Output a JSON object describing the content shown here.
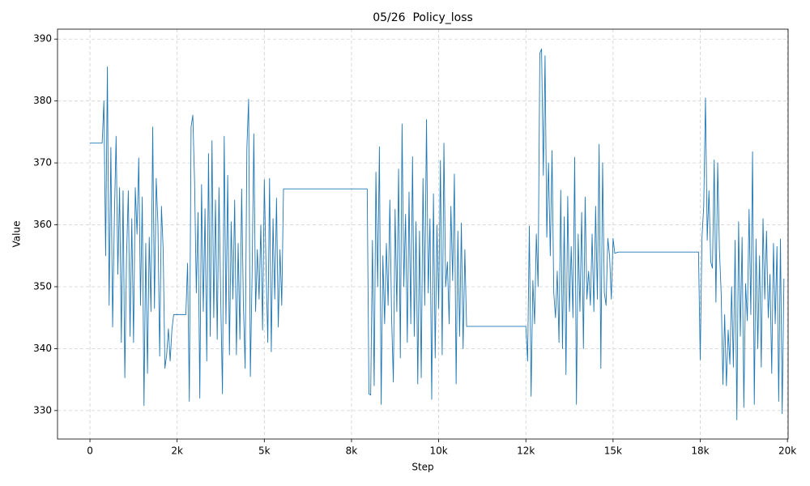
{
  "chart_data": {
    "type": "line",
    "title": "05/26  Policy_loss",
    "x_label": "Step",
    "y_label": "Value",
    "color": "#1f77b4",
    "grid": true,
    "xlim": [
      -930,
      20020
    ],
    "ylim": [
      325.4,
      391.6
    ],
    "xticks": [
      0,
      {
        "value": 2500,
        "label": "2k"
      },
      {
        "value": 5000,
        "label": "5k"
      },
      {
        "value": 7500,
        "label": "8k"
      },
      {
        "value": 10000,
        "label": "10k"
      },
      {
        "value": 12500,
        "label": "12k"
      },
      {
        "value": 15000,
        "label": "15k"
      },
      {
        "value": 17500,
        "label": "18k"
      },
      {
        "value": 20000,
        "label": "20k"
      }
    ],
    "yticks": [
      330,
      340,
      350,
      360,
      370,
      380,
      390
    ],
    "x": [
      0,
      350,
      400,
      450,
      500,
      550,
      600,
      650,
      700,
      750,
      800,
      850,
      900,
      950,
      1000,
      1050,
      1100,
      1150,
      1200,
      1250,
      1300,
      1350,
      1400,
      1450,
      1500,
      1550,
      1600,
      1650,
      1700,
      1750,
      1800,
      1850,
      1900,
      1950,
      2000,
      2050,
      2100,
      2150,
      2200,
      2250,
      2300,
      2350,
      2400,
      2750,
      2800,
      2850,
      2900,
      2950,
      3000,
      3050,
      3100,
      3150,
      3200,
      3250,
      3300,
      3350,
      3400,
      3450,
      3500,
      3550,
      3600,
      3650,
      3700,
      3750,
      3800,
      3850,
      3900,
      3950,
      4000,
      4050,
      4100,
      4150,
      4200,
      4250,
      4300,
      4350,
      4400,
      4450,
      4500,
      4550,
      4600,
      4650,
      4700,
      4750,
      4800,
      4850,
      4900,
      4950,
      5000,
      5050,
      5100,
      5150,
      5200,
      5250,
      5300,
      5350,
      5400,
      5450,
      5500,
      5550,
      7950,
      8000,
      8050,
      8100,
      8150,
      8200,
      8250,
      8300,
      8350,
      8400,
      8450,
      8500,
      8550,
      8600,
      8650,
      8700,
      8750,
      8800,
      8850,
      8900,
      8950,
      9000,
      9050,
      9100,
      9150,
      9200,
      9250,
      9300,
      9350,
      9400,
      9450,
      9500,
      9550,
      9600,
      9650,
      9700,
      9750,
      9800,
      9850,
      9900,
      9950,
      10000,
      10050,
      10100,
      10150,
      10200,
      10250,
      10300,
      10350,
      10400,
      10450,
      10500,
      10550,
      10600,
      10650,
      10700,
      10750,
      10800,
      12500,
      12550,
      12600,
      12650,
      12700,
      12750,
      12800,
      12850,
      12900,
      12950,
      13000,
      13050,
      13100,
      13150,
      13200,
      13250,
      13300,
      13350,
      13400,
      13450,
      13500,
      13550,
      13600,
      13650,
      13700,
      13750,
      13800,
      13850,
      13900,
      13950,
      14000,
      14050,
      14100,
      14150,
      14200,
      14250,
      14300,
      14350,
      14400,
      14450,
      14500,
      14550,
      14600,
      14650,
      14700,
      14750,
      14800,
      14850,
      14900,
      14950,
      15000,
      15050,
      15150,
      17450,
      17500,
      17550,
      17600,
      17650,
      17700,
      17750,
      17800,
      17850,
      17900,
      17950,
      18000,
      18050,
      18100,
      18150,
      18200,
      18250,
      18300,
      18350,
      18400,
      18450,
      18500,
      18550,
      18600,
      18650,
      18700,
      18750,
      18800,
      18850,
      18900,
      18950,
      19000,
      19050,
      19100,
      19150,
      19200,
      19250,
      19300,
      19350,
      19400,
      19450,
      19500,
      19550,
      19600,
      19650,
      19700,
      19750,
      19800,
      19850,
      19900
    ],
    "values": [
      373.2,
      373.2,
      380,
      355,
      385.5,
      347,
      372.5,
      343.5,
      361,
      374.3,
      352,
      366,
      341,
      365.5,
      335.3,
      355,
      365.5,
      342,
      361,
      341,
      366,
      358.5,
      370.8,
      347,
      364.5,
      330.8,
      357,
      336,
      358,
      346,
      375.8,
      346.5,
      367.5,
      360,
      338.8,
      363,
      356,
      336.8,
      339,
      343.2,
      338,
      343,
      345.5,
      345.5,
      353.8,
      331.5,
      375.8,
      377.7,
      367,
      349,
      362,
      332,
      366.5,
      346,
      362.6,
      338,
      371.5,
      342,
      373.6,
      345,
      364,
      341.5,
      366,
      348,
      332.7,
      374.3,
      344,
      368,
      339,
      360.5,
      348,
      364,
      339,
      357,
      341.5,
      365.8,
      347,
      336.8,
      372.4,
      380.3,
      335.5,
      352,
      374.7,
      346,
      356,
      348,
      360,
      343,
      367.3,
      353,
      341,
      367.5,
      339.5,
      361,
      348,
      364.3,
      343.5,
      356,
      347,
      365.8,
      365.8,
      332.7,
      332.5,
      357.5,
      334,
      368.5,
      350,
      372.6,
      331,
      355,
      344,
      357,
      347,
      364,
      345,
      334.6,
      362.5,
      346,
      369,
      338.5,
      376.3,
      350,
      361.7,
      341,
      365.3,
      344,
      371,
      342,
      360.5,
      334.3,
      359,
      335.3,
      367.5,
      347,
      377,
      349,
      361,
      331.8,
      365,
      338.5,
      360,
      346.5,
      370.4,
      339,
      373.2,
      350,
      354,
      344,
      363,
      351,
      368.2,
      334.3,
      359,
      342,
      360.3,
      340,
      356,
      343.6,
      343.6,
      338,
      359.8,
      332.3,
      351,
      344,
      358.5,
      350,
      387.7,
      388.4,
      368,
      387.3,
      358,
      370,
      355,
      372,
      349,
      345,
      352.5,
      341,
      365.6,
      340,
      361.3,
      335.8,
      364.6,
      346,
      356.5,
      345,
      370.9,
      331,
      358.5,
      346,
      362,
      340,
      364.5,
      348,
      352.5,
      347,
      358.5,
      346,
      363,
      348,
      373,
      336.8,
      370,
      349,
      347,
      357.8,
      355,
      348,
      357.8,
      355.4,
      355.6,
      355.6,
      338.2,
      358,
      363,
      380.5,
      357.5,
      365.5,
      354,
      353,
      370.5,
      347.5,
      370,
      356,
      349,
      334.2,
      345.5,
      334,
      343,
      337.5,
      350,
      337,
      357.5,
      328.5,
      360.5,
      342,
      358,
      330.5,
      350.5,
      344.5,
      362.5,
      345.5,
      371.8,
      331,
      357.7,
      340,
      355,
      337,
      361,
      348,
      359,
      345,
      352,
      336,
      357,
      344,
      356.5,
      331.5,
      357.7,
      329.5,
      351.3
    ]
  }
}
